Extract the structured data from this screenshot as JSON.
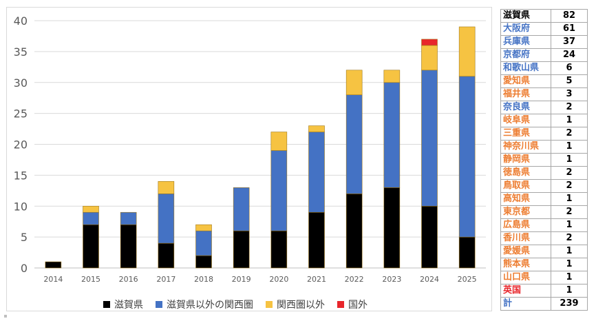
{
  "chart_data": {
    "type": "bar",
    "stacked": true,
    "categories": [
      "2014",
      "2015",
      "2016",
      "2017",
      "2018",
      "2019",
      "2020",
      "2021",
      "2022",
      "2023",
      "2024",
      "2025"
    ],
    "series": [
      {
        "name": "滋賀県",
        "color": "#000000",
        "values": [
          1,
          7,
          7,
          4,
          2,
          6,
          6,
          9,
          12,
          13,
          10,
          5
        ]
      },
      {
        "name": "滋賀県以外の関西圏",
        "color": "#4472C4",
        "values": [
          0,
          2,
          2,
          8,
          4,
          7,
          13,
          13,
          16,
          17,
          22,
          26
        ]
      },
      {
        "name": "関西圏以外",
        "color": "#F6C342",
        "values": [
          0,
          1,
          0,
          2,
          1,
          0,
          3,
          1,
          4,
          2,
          4,
          8
        ]
      },
      {
        "name": "国外",
        "color": "#E8262B",
        "values": [
          0,
          0,
          0,
          0,
          0,
          0,
          0,
          0,
          0,
          0,
          1,
          0
        ]
      }
    ],
    "ylim": [
      0,
      40
    ],
    "yticks": [
      0,
      5,
      10,
      15,
      20,
      25,
      30,
      35,
      40
    ],
    "grid": true,
    "legend_position": "bottom"
  },
  "table": {
    "rows": [
      {
        "name": "滋賀県",
        "count": "82",
        "color": "#000000"
      },
      {
        "name": "大阪府",
        "count": "61",
        "color": "#4472C4"
      },
      {
        "name": "兵庫県",
        "count": "37",
        "color": "#4472C4"
      },
      {
        "name": "京都府",
        "count": "24",
        "color": "#4472C4"
      },
      {
        "name": "和歌山県",
        "count": "6",
        "color": "#4472C4"
      },
      {
        "name": "愛知県",
        "count": "5",
        "color": "#ED7D31"
      },
      {
        "name": "福井県",
        "count": "3",
        "color": "#ED7D31"
      },
      {
        "name": "奈良県",
        "count": "2",
        "color": "#4472C4"
      },
      {
        "name": "岐阜県",
        "count": "1",
        "color": "#ED7D31"
      },
      {
        "name": "三重県",
        "count": "2",
        "color": "#ED7D31"
      },
      {
        "name": "神奈川県",
        "count": "1",
        "color": "#ED7D31"
      },
      {
        "name": "静岡県",
        "count": "1",
        "color": "#ED7D31"
      },
      {
        "name": "徳島県",
        "count": "2",
        "color": "#ED7D31"
      },
      {
        "name": "鳥取県",
        "count": "2",
        "color": "#ED7D31"
      },
      {
        "name": "高知県",
        "count": "1",
        "color": "#ED7D31"
      },
      {
        "name": "東京都",
        "count": "2",
        "color": "#ED7D31"
      },
      {
        "name": "広島県",
        "count": "1",
        "color": "#ED7D31"
      },
      {
        "name": "香川県",
        "count": "2",
        "color": "#ED7D31"
      },
      {
        "name": "愛媛県",
        "count": "1",
        "color": "#ED7D31"
      },
      {
        "name": "熊本県",
        "count": "1",
        "color": "#ED7D31"
      },
      {
        "name": "山口県",
        "count": "1",
        "color": "#ED7D31"
      },
      {
        "name": "英国",
        "count": "1",
        "color": "#E8262B"
      },
      {
        "name": "計",
        "count": "239",
        "color": "#4472C4"
      }
    ]
  }
}
